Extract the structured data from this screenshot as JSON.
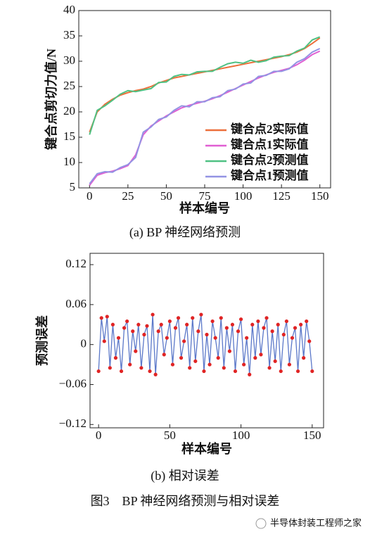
{
  "chart_data": [
    {
      "type": "line",
      "xlabel": "样本编号",
      "ylabel": "键合点剪切力值/N",
      "x": [
        0,
        5,
        10,
        15,
        20,
        25,
        30,
        35,
        40,
        45,
        50,
        55,
        60,
        65,
        70,
        75,
        80,
        85,
        90,
        95,
        100,
        105,
        110,
        115,
        120,
        125,
        130,
        135,
        140,
        145,
        150
      ],
      "series": [
        {
          "name": "键合点2实际值",
          "color": "#ec6f3a",
          "values": [
            16,
            20,
            21.5,
            22.5,
            23.3,
            23.8,
            24.2,
            24.5,
            25,
            25.7,
            26.2,
            26.7,
            27,
            27.3,
            27.6,
            27.9,
            28.2,
            28.5,
            28.8,
            29.1,
            29.4,
            29.7,
            30,
            30.3,
            30.6,
            30.9,
            31.3,
            31.8,
            32.5,
            33.5,
            34.6
          ]
        },
        {
          "name": "键合点1实际值",
          "color": "#e05fd2",
          "values": [
            5.5,
            7.5,
            8,
            8.3,
            8.8,
            9.4,
            11.5,
            15.5,
            17.2,
            18.2,
            19.2,
            20,
            20.8,
            21.3,
            21.7,
            22.1,
            22.6,
            23.2,
            23.9,
            24.6,
            25.3,
            26,
            26.7,
            27.3,
            27.8,
            28.2,
            28.6,
            29.3,
            30.2,
            31.3,
            32
          ]
        },
        {
          "name": "键合点2预测值",
          "color": "#4fc183",
          "values": [
            15.5,
            20.3,
            21.2,
            22.3,
            23.5,
            24.2,
            24,
            24.3,
            24.6,
            25.8,
            25.9,
            27,
            27.4,
            27.3,
            27.9,
            28,
            28,
            28.8,
            29.5,
            29.8,
            29.6,
            30.2,
            29.8,
            30.1,
            30.8,
            31,
            31.1,
            32,
            32.6,
            34.2,
            34.8
          ]
        },
        {
          "name": "键合点1预测值",
          "color": "#9393e3",
          "values": [
            5.8,
            7.8,
            8.2,
            8.1,
            9,
            9.6,
            11,
            16,
            17,
            18.5,
            19,
            20.3,
            21.2,
            21,
            22,
            22,
            22.8,
            23,
            24.2,
            24.5,
            25.5,
            25.7,
            27,
            27.2,
            28,
            28,
            28.5,
            29.8,
            30.5,
            31.8,
            32.5
          ]
        }
      ],
      "xlim": [
        -7,
        157
      ],
      "xticks": [
        0,
        25,
        50,
        75,
        100,
        125,
        150
      ],
      "ylim": [
        5,
        40
      ],
      "yticks": [
        5,
        10,
        15,
        20,
        25,
        30,
        35,
        40
      ],
      "legend": "lower right"
    },
    {
      "type": "line",
      "xlabel": "样本编号",
      "ylabel": "预测误差",
      "x": [
        0,
        2,
        4,
        6,
        8,
        10,
        12,
        14,
        16,
        18,
        20,
        22,
        24,
        26,
        28,
        30,
        32,
        34,
        36,
        38,
        40,
        42,
        44,
        46,
        48,
        50,
        52,
        54,
        56,
        58,
        60,
        62,
        64,
        66,
        68,
        70,
        72,
        74,
        76,
        78,
        80,
        82,
        84,
        86,
        88,
        90,
        92,
        94,
        96,
        98,
        100,
        102,
        104,
        106,
        108,
        110,
        112,
        114,
        116,
        118,
        120,
        122,
        124,
        126,
        128,
        130,
        132,
        134,
        136,
        138,
        140,
        142,
        144,
        146,
        148,
        150
      ],
      "series": [
        {
          "color": "#5b78c9",
          "marker_color": "#e02424",
          "values": [
            -0.04,
            0.04,
            0.005,
            0.042,
            -0.035,
            0.03,
            -0.02,
            0.01,
            -0.04,
            0.025,
            0.035,
            -0.03,
            0.02,
            -0.01,
            0.03,
            -0.035,
            0.015,
            0.028,
            -0.04,
            0.045,
            -0.045,
            0.02,
            0.03,
            -0.015,
            0.01,
            0.035,
            -0.03,
            0.025,
            0.04,
            -0.02,
            0.005,
            0.03,
            -0.035,
            0.04,
            -0.025,
            0.02,
            0.045,
            -0.04,
            0.015,
            -0.03,
            0.035,
            0.01,
            -0.02,
            0.04,
            -0.035,
            0.025,
            -0.01,
            0.03,
            -0.04,
            0.02,
            0.038,
            -0.03,
            0.01,
            -0.045,
            0.03,
            -0.02,
            0.035,
            -0.015,
            0.025,
            0.04,
            -0.035,
            0.02,
            -0.025,
            0.03,
            -0.04,
            0.015,
            0.035,
            -0.03,
            0.01,
            0.025,
            -0.04,
            0.03,
            -0.02,
            0.035,
            0.005,
            -0.04
          ]
        }
      ],
      "xlim": [
        -6,
        158
      ],
      "xticks": [
        0,
        50,
        100,
        150
      ],
      "ylim": [
        -0.125,
        0.137
      ],
      "yticks": [
        {
          "value": -0.12,
          "label": "−0.12"
        },
        {
          "value": -0.06,
          "label": "−0.06"
        },
        0,
        0.06,
        0.12
      ]
    }
  ],
  "captions": [
    "(a) BP 神经网络预测",
    "(b) 相对误差",
    "图3　BP 神经网络预测与相对误差"
  ],
  "watermark": "半导体封装工程师之家"
}
